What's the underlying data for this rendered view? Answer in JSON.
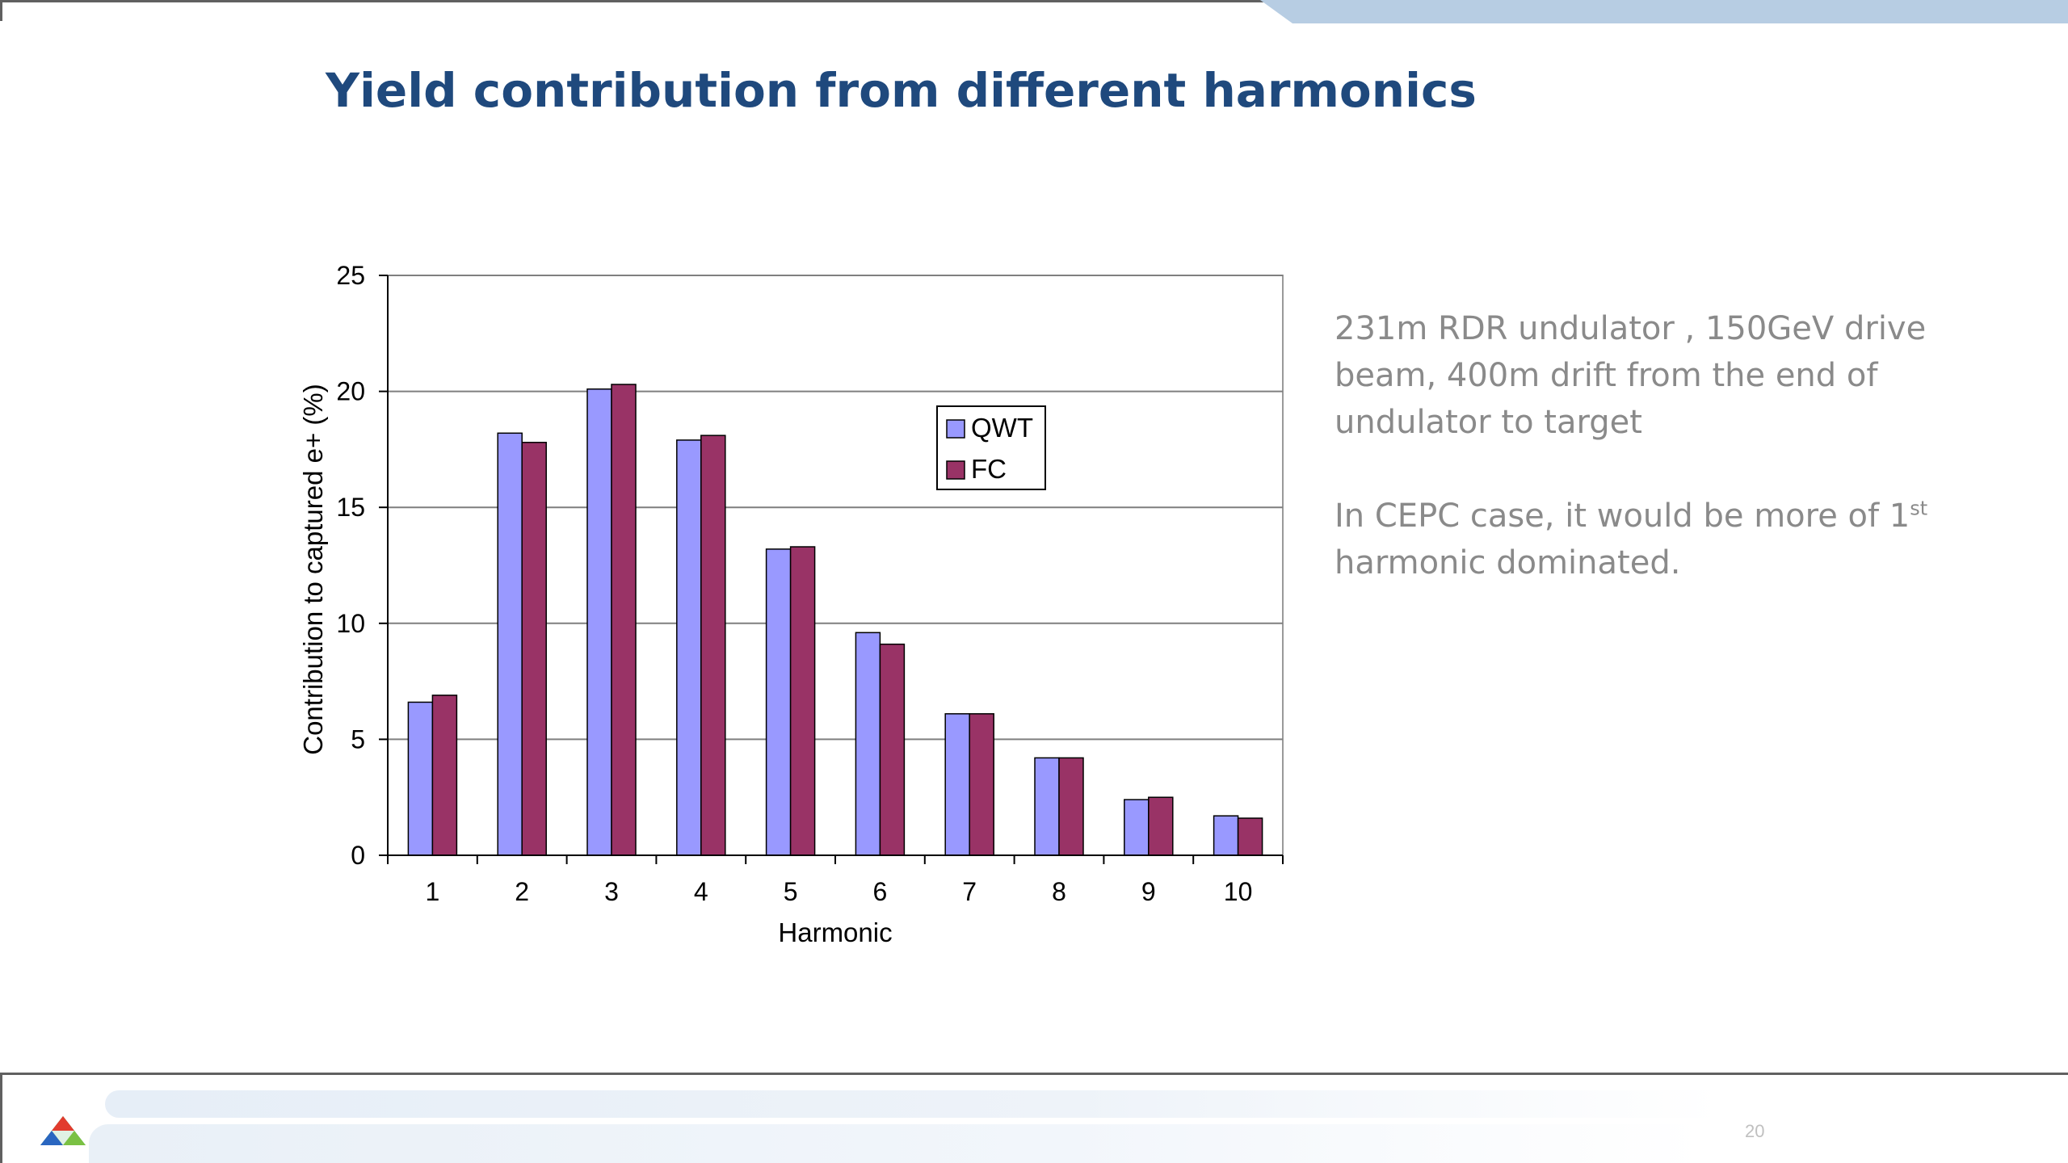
{
  "slide": {
    "title": "Yield contribution from different harmonics",
    "side_text": {
      "paragraph1": "231m RDR undulator , 150GeV drive beam, 400m drift from the end of undulator to target",
      "paragraph2_before": "In CEPC case, it would be more of 1",
      "paragraph2_sup": "st",
      "paragraph2_after": " harmonic dominated."
    },
    "page_number": "20"
  },
  "chart_data": {
    "type": "bar",
    "categories": [
      "1",
      "2",
      "3",
      "4",
      "5",
      "6",
      "7",
      "8",
      "9",
      "10"
    ],
    "series": [
      {
        "name": "QWT",
        "color": "#9999ff",
        "values": [
          6.6,
          18.2,
          20.1,
          17.9,
          13.2,
          9.6,
          6.1,
          4.2,
          2.4,
          1.7
        ]
      },
      {
        "name": "FC",
        "color": "#993366",
        "values": [
          6.9,
          17.8,
          20.3,
          18.1,
          13.3,
          9.1,
          6.1,
          4.2,
          2.5,
          1.6
        ]
      }
    ],
    "title": "",
    "xlabel": "Harmonic",
    "ylabel": "Contribution to captured e+ (%)",
    "ylim": [
      0,
      25
    ],
    "yticks": [
      "0",
      "5",
      "10",
      "15",
      "20",
      "25"
    ],
    "grid": true,
    "legend": "upper-right"
  }
}
